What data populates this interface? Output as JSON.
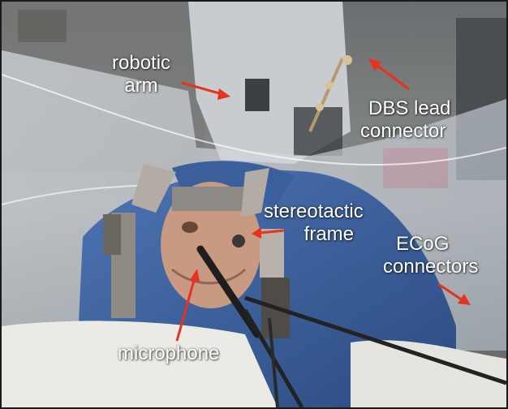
{
  "annotations": {
    "robotic_arm": {
      "line1": "robotic",
      "line2": "arm"
    },
    "dbs_lead_connector": {
      "line1": "DBS lead",
      "line2": "connector"
    },
    "stereotactic_frame": {
      "line1": "stereotactic",
      "line2": "frame"
    },
    "ecog_connectors": {
      "line1": "ECoG",
      "line2": "connectors"
    },
    "microphone": {
      "line1": "microphone"
    }
  },
  "colors": {
    "arrow": "#e8321e",
    "label_text": "#ffffff",
    "drape": "#c9d2dc",
    "gown": "#3a5f9e"
  }
}
